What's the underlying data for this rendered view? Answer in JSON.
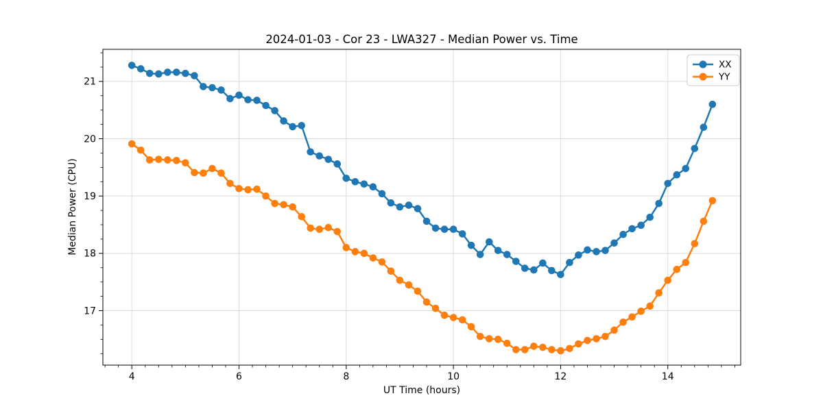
{
  "figure": {
    "background": "#ffffff"
  },
  "axes": {
    "xlim": [
      3.46,
      15.36
    ],
    "ylim": [
      16.05,
      21.56
    ],
    "xticks": [
      4,
      6,
      8,
      10,
      12,
      14
    ],
    "yticks": [
      17,
      18,
      19,
      20,
      21
    ],
    "x_minor_step": 0.25,
    "y_minor_step": 0.25,
    "grid": true,
    "grid_color": "#dcdcdc",
    "spine_color": "#000000"
  },
  "legend": {
    "position": "upper right",
    "border_color": "#cccccc",
    "background": "#ffffff"
  },
  "chart_data": {
    "type": "line",
    "title": "2024-01-03 - Cor 23 - LWA327 - Median Power vs. Time",
    "xlabel": "UT Time (hours)",
    "ylabel": "Median Power (CPU)",
    "xlim": [
      3.46,
      15.36
    ],
    "ylim": [
      16.05,
      21.56
    ],
    "grid": true,
    "legend_position": "upper right",
    "marker": "circle",
    "x": [
      4.0,
      4.167,
      4.333,
      4.5,
      4.667,
      4.833,
      5.0,
      5.167,
      5.333,
      5.5,
      5.667,
      5.833,
      6.0,
      6.167,
      6.333,
      6.5,
      6.667,
      6.833,
      7.0,
      7.167,
      7.333,
      7.5,
      7.667,
      7.833,
      8.0,
      8.167,
      8.333,
      8.5,
      8.667,
      8.833,
      9.0,
      9.167,
      9.333,
      9.5,
      9.667,
      9.833,
      10.0,
      10.167,
      10.333,
      10.5,
      10.667,
      10.833,
      11.0,
      11.167,
      11.333,
      11.5,
      11.667,
      11.833,
      12.0,
      12.167,
      12.333,
      12.5,
      12.667,
      12.833,
      13.0,
      13.167,
      13.333,
      13.5,
      13.667,
      13.833,
      14.0,
      14.167,
      14.333,
      14.5,
      14.667,
      14.833
    ],
    "series": [
      {
        "name": "XX",
        "color": "#1f77b4",
        "values": [
          21.28,
          21.22,
          21.14,
          21.13,
          21.16,
          21.16,
          21.14,
          21.1,
          20.91,
          20.89,
          20.85,
          20.7,
          20.76,
          20.68,
          20.67,
          20.58,
          20.49,
          20.31,
          20.21,
          20.23,
          19.77,
          19.7,
          19.64,
          19.56,
          19.31,
          19.25,
          19.21,
          19.16,
          19.04,
          18.88,
          18.81,
          18.84,
          18.78,
          18.56,
          18.44,
          18.42,
          18.42,
          18.34,
          18.14,
          17.98,
          18.2,
          18.05,
          17.98,
          17.86,
          17.74,
          17.71,
          17.83,
          17.7,
          17.63,
          17.84,
          17.97,
          18.06,
          18.03,
          18.05,
          18.18,
          18.33,
          18.43,
          18.49,
          18.63,
          18.87,
          19.22,
          19.37,
          19.48,
          19.83,
          20.2,
          20.6
        ]
      },
      {
        "name": "YY",
        "color": "#ff7f0e",
        "values": [
          19.91,
          19.8,
          19.63,
          19.64,
          19.63,
          19.62,
          19.58,
          19.41,
          19.4,
          19.48,
          19.4,
          19.22,
          19.13,
          19.11,
          19.12,
          19.0,
          18.87,
          18.85,
          18.81,
          18.64,
          18.44,
          18.42,
          18.45,
          18.38,
          18.1,
          18.03,
          18.0,
          17.92,
          17.85,
          17.69,
          17.53,
          17.45,
          17.34,
          17.15,
          17.04,
          16.92,
          16.88,
          16.84,
          16.72,
          16.55,
          16.51,
          16.5,
          16.43,
          16.32,
          16.32,
          16.38,
          16.36,
          16.32,
          16.3,
          16.34,
          16.42,
          16.48,
          16.51,
          16.55,
          16.66,
          16.8,
          16.89,
          16.99,
          17.08,
          17.31,
          17.53,
          17.72,
          17.84,
          18.17,
          18.56,
          18.92
        ]
      }
    ]
  }
}
